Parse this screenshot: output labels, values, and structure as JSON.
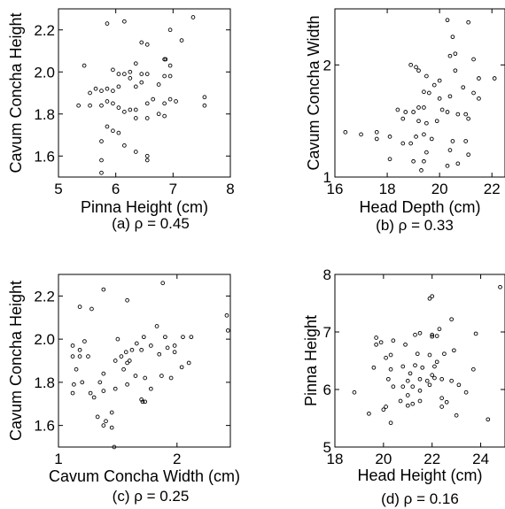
{
  "chart_data": [
    {
      "type": "scatter",
      "panel": "a",
      "caption": "(a)   ρ = 0.45",
      "xlabel": "Pinna Height (cm)",
      "ylabel": "Cavum Concha Height",
      "xlim": [
        5,
        8
      ],
      "ylim": [
        1.5,
        2.3
      ],
      "xticks": [
        "5",
        "6",
        "7",
        "8"
      ],
      "yticks": [
        "1.6",
        "1.8",
        "2.0",
        "2.2"
      ],
      "points": [
        [
          5.85,
          2.23
        ],
        [
          6.15,
          2.24
        ],
        [
          6.45,
          2.14
        ],
        [
          6.55,
          2.13
        ],
        [
          7.35,
          2.26
        ],
        [
          6.95,
          2.2
        ],
        [
          7.15,
          2.15
        ],
        [
          5.45,
          2.03
        ],
        [
          5.95,
          2.01
        ],
        [
          6.05,
          1.99
        ],
        [
          6.15,
          1.99
        ],
        [
          6.25,
          2.0
        ],
        [
          6.45,
          1.99
        ],
        [
          6.55,
          1.99
        ],
        [
          6.85,
          2.06
        ],
        [
          6.87,
          2.06
        ],
        [
          6.95,
          2.03
        ],
        [
          6.35,
          2.04
        ],
        [
          5.55,
          1.9
        ],
        [
          5.65,
          1.92
        ],
        [
          5.75,
          1.91
        ],
        [
          5.85,
          1.92
        ],
        [
          5.95,
          1.91
        ],
        [
          6.05,
          1.93
        ],
        [
          6.35,
          1.93
        ],
        [
          6.75,
          1.94
        ],
        [
          6.85,
          1.98
        ],
        [
          6.95,
          1.98
        ],
        [
          6.25,
          1.97
        ],
        [
          6.45,
          1.95
        ],
        [
          5.35,
          1.84
        ],
        [
          5.55,
          1.84
        ],
        [
          5.75,
          1.84
        ],
        [
          5.85,
          1.86
        ],
        [
          5.95,
          1.85
        ],
        [
          6.05,
          1.83
        ],
        [
          6.15,
          1.81
        ],
        [
          6.25,
          1.82
        ],
        [
          6.35,
          1.82
        ],
        [
          6.55,
          1.85
        ],
        [
          6.65,
          1.87
        ],
        [
          6.85,
          1.85
        ],
        [
          6.95,
          1.87
        ],
        [
          7.05,
          1.86
        ],
        [
          6.35,
          1.78
        ],
        [
          6.55,
          1.78
        ],
        [
          6.85,
          1.79
        ],
        [
          7.55,
          1.88
        ],
        [
          7.55,
          1.84
        ],
        [
          6.75,
          1.8
        ],
        [
          5.85,
          1.74
        ],
        [
          5.95,
          1.72
        ],
        [
          6.05,
          1.71
        ],
        [
          5.75,
          1.67
        ],
        [
          6.15,
          1.65
        ],
        [
          6.35,
          1.62
        ],
        [
          6.55,
          1.6
        ],
        [
          6.55,
          1.58
        ],
        [
          5.75,
          1.58
        ],
        [
          5.75,
          1.52
        ]
      ]
    },
    {
      "type": "scatter",
      "panel": "b",
      "caption": "(b)   ρ = 0.33",
      "xlabel": "Head Depth  (cm)",
      "ylabel": "Cavum Concha Width",
      "xlim": [
        16,
        22.5
      ],
      "ylim": [
        1,
        2.5
      ],
      "xticks": [
        "16",
        "18",
        "20",
        "22"
      ],
      "yticks": [
        "1",
        "2"
      ],
      "points": [
        [
          20.3,
          2.4
        ],
        [
          21.1,
          2.38
        ],
        [
          20.5,
          2.25
        ],
        [
          20.6,
          2.1
        ],
        [
          20.4,
          2.08
        ],
        [
          21.3,
          2.05
        ],
        [
          18.9,
          2.0
        ],
        [
          19.1,
          1.98
        ],
        [
          19.2,
          1.95
        ],
        [
          20.6,
          1.95
        ],
        [
          19.5,
          1.9
        ],
        [
          20.0,
          1.86
        ],
        [
          21.5,
          1.88
        ],
        [
          22.1,
          1.88
        ],
        [
          19.8,
          1.82
        ],
        [
          20.9,
          1.8
        ],
        [
          21.3,
          1.75
        ],
        [
          19.4,
          1.76
        ],
        [
          19.6,
          1.75
        ],
        [
          20.0,
          1.7
        ],
        [
          20.4,
          1.72
        ],
        [
          21.5,
          1.7
        ],
        [
          18.4,
          1.6
        ],
        [
          18.7,
          1.58
        ],
        [
          19.0,
          1.58
        ],
        [
          19.2,
          1.62
        ],
        [
          19.4,
          1.62
        ],
        [
          20.1,
          1.6
        ],
        [
          20.3,
          1.58
        ],
        [
          20.7,
          1.56
        ],
        [
          21.0,
          1.56
        ],
        [
          18.6,
          1.52
        ],
        [
          19.2,
          1.5
        ],
        [
          19.5,
          1.48
        ],
        [
          19.9,
          1.5
        ],
        [
          21.1,
          1.52
        ],
        [
          16.4,
          1.4
        ],
        [
          17.0,
          1.38
        ],
        [
          17.6,
          1.4
        ],
        [
          17.6,
          1.34
        ],
        [
          18.1,
          1.36
        ],
        [
          19.1,
          1.36
        ],
        [
          19.4,
          1.38
        ],
        [
          19.7,
          1.34
        ],
        [
          20.5,
          1.32
        ],
        [
          21.0,
          1.32
        ],
        [
          18.6,
          1.3
        ],
        [
          18.9,
          1.3
        ],
        [
          20.4,
          1.24
        ],
        [
          19.5,
          1.22
        ],
        [
          21.1,
          1.2
        ],
        [
          18.1,
          1.16
        ],
        [
          19.0,
          1.14
        ],
        [
          19.4,
          1.14
        ],
        [
          20.7,
          1.12
        ],
        [
          20.3,
          1.1
        ],
        [
          19.3,
          1.06
        ]
      ]
    },
    {
      "type": "scatter",
      "panel": "c",
      "caption": "(c)    ρ = 0.25",
      "xlabel": "Cavum Concha Width (cm)",
      "ylabel": "Cavum Concha Height",
      "xlim": [
        1,
        2.45
      ],
      "ylim": [
        1.5,
        2.3
      ],
      "xticks": [
        "1",
        "2"
      ],
      "yticks": [
        "1.6",
        "1.8",
        "2.0",
        "2.2"
      ],
      "points": [
        [
          1.38,
          2.23
        ],
        [
          1.88,
          2.26
        ],
        [
          1.18,
          2.15
        ],
        [
          1.28,
          2.14
        ],
        [
          1.58,
          2.18
        ],
        [
          2.42,
          2.11
        ],
        [
          2.43,
          2.04
        ],
        [
          1.12,
          1.97
        ],
        [
          1.18,
          1.95
        ],
        [
          1.22,
          1.99
        ],
        [
          1.5,
          2.0
        ],
        [
          1.72,
          2.01
        ],
        [
          1.83,
          2.06
        ],
        [
          1.9,
          2.01
        ],
        [
          2.05,
          2.01
        ],
        [
          2.12,
          2.01
        ],
        [
          1.98,
          1.97
        ],
        [
          1.66,
          1.98
        ],
        [
          1.12,
          1.92
        ],
        [
          1.18,
          1.92
        ],
        [
          1.25,
          1.92
        ],
        [
          1.15,
          1.86
        ],
        [
          1.48,
          1.9
        ],
        [
          1.53,
          1.92
        ],
        [
          1.57,
          1.94
        ],
        [
          1.62,
          1.95
        ],
        [
          1.7,
          1.95
        ],
        [
          1.78,
          1.97
        ],
        [
          1.85,
          1.93
        ],
        [
          1.92,
          1.96
        ],
        [
          1.98,
          1.94
        ],
        [
          2.1,
          1.89
        ],
        [
          2.04,
          1.87
        ],
        [
          1.13,
          1.79
        ],
        [
          1.2,
          1.8
        ],
        [
          1.35,
          1.8
        ],
        [
          1.38,
          1.84
        ],
        [
          1.55,
          1.86
        ],
        [
          1.58,
          1.89
        ],
        [
          1.6,
          1.9
        ],
        [
          1.65,
          1.83
        ],
        [
          1.73,
          1.82
        ],
        [
          1.87,
          1.83
        ],
        [
          1.95,
          1.82
        ],
        [
          1.58,
          1.79
        ],
        [
          1.48,
          1.77
        ],
        [
          1.12,
          1.75
        ],
        [
          1.27,
          1.75
        ],
        [
          1.38,
          1.76
        ],
        [
          1.3,
          1.73
        ],
        [
          1.7,
          1.72
        ],
        [
          1.71,
          1.71
        ],
        [
          1.73,
          1.71
        ],
        [
          1.78,
          1.77
        ],
        [
          1.33,
          1.64
        ],
        [
          1.4,
          1.62
        ],
        [
          1.45,
          1.66
        ],
        [
          1.38,
          1.6
        ],
        [
          1.45,
          1.59
        ],
        [
          1.47,
          1.5
        ]
      ]
    },
    {
      "type": "scatter",
      "panel": "d",
      "caption": "(d)   ρ = 0.16",
      "xlabel": "Head Height  (cm)",
      "ylabel": "Pinna Height",
      "xlim": [
        18,
        25
      ],
      "ylim": [
        5,
        8
      ],
      "xticks": [
        "18",
        "20",
        "22",
        "24"
      ],
      "yticks": [
        "5",
        "6",
        "7",
        "8"
      ],
      "points": [
        [
          24.8,
          7.78
        ],
        [
          21.9,
          7.58
        ],
        [
          22.0,
          7.62
        ],
        [
          22.8,
          7.22
        ],
        [
          22.3,
          7.05
        ],
        [
          21.3,
          6.95
        ],
        [
          21.5,
          6.98
        ],
        [
          22.0,
          6.95
        ],
        [
          22.0,
          6.92
        ],
        [
          22.2,
          6.93
        ],
        [
          23.8,
          6.97
        ],
        [
          19.7,
          6.9
        ],
        [
          20.4,
          6.85
        ],
        [
          19.7,
          6.78
        ],
        [
          19.9,
          6.82
        ],
        [
          20.9,
          6.78
        ],
        [
          20.3,
          6.6
        ],
        [
          21.4,
          6.62
        ],
        [
          21.9,
          6.6
        ],
        [
          22.5,
          6.62
        ],
        [
          22.9,
          6.68
        ],
        [
          20.1,
          6.55
        ],
        [
          22.2,
          6.48
        ],
        [
          19.6,
          6.38
        ],
        [
          20.3,
          6.35
        ],
        [
          20.8,
          6.4
        ],
        [
          21.3,
          6.42
        ],
        [
          21.6,
          6.38
        ],
        [
          22.1,
          6.4
        ],
        [
          23.7,
          6.35
        ],
        [
          21.1,
          6.28
        ],
        [
          22.0,
          6.25
        ],
        [
          22.1,
          6.2
        ],
        [
          20.2,
          6.18
        ],
        [
          21.0,
          6.15
        ],
        [
          21.5,
          6.18
        ],
        [
          21.8,
          6.15
        ],
        [
          22.4,
          6.18
        ],
        [
          22.8,
          6.15
        ],
        [
          20.4,
          6.05
        ],
        [
          20.8,
          6.05
        ],
        [
          21.2,
          6.05
        ],
        [
          21.9,
          6.08
        ],
        [
          23.1,
          6.08
        ],
        [
          21.5,
          5.98
        ],
        [
          23.4,
          5.95
        ],
        [
          18.8,
          5.95
        ],
        [
          21.0,
          5.9
        ],
        [
          20.7,
          5.8
        ],
        [
          21.5,
          5.8
        ],
        [
          22.4,
          5.85
        ],
        [
          22.6,
          5.78
        ],
        [
          21.0,
          5.72
        ],
        [
          21.2,
          5.75
        ],
        [
          22.4,
          5.7
        ],
        [
          20.1,
          5.7
        ],
        [
          20.0,
          5.65
        ],
        [
          19.4,
          5.58
        ],
        [
          23.0,
          5.55
        ],
        [
          20.3,
          5.42
        ],
        [
          24.3,
          5.48
        ]
      ]
    }
  ]
}
